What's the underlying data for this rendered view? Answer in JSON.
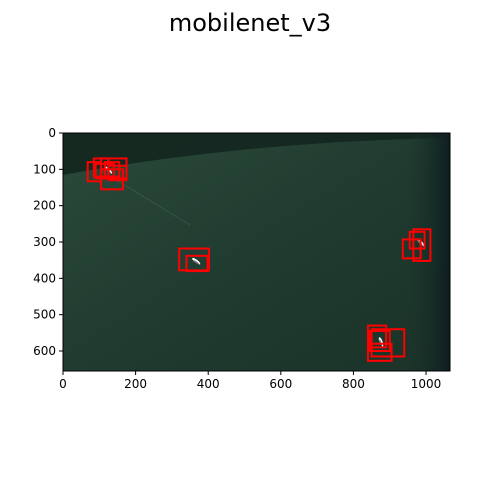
{
  "figure": {
    "title": "mobilenet_v3"
  },
  "chart_data": {
    "type": "image",
    "title": "mobilenet_v3",
    "xlabel": "",
    "ylabel": "",
    "xlim": [
      0,
      1066
    ],
    "ylim": [
      655,
      0
    ],
    "x_ticks": [
      0,
      200,
      400,
      600,
      800,
      1000
    ],
    "y_ticks": [
      0,
      100,
      200,
      300,
      400,
      500,
      600
    ],
    "grid": false,
    "box_color": "#ff0000",
    "image_description_colors": {
      "sea": "#1f3a2f",
      "dark_sea": "#0f1f1e",
      "ship": "#ffffff"
    },
    "detections": [
      {
        "x0": 68,
        "y0": 80,
        "x1": 105,
        "y1": 133
      },
      {
        "x0": 85,
        "y0": 70,
        "x1": 125,
        "y1": 120
      },
      {
        "x0": 90,
        "y0": 85,
        "x1": 140,
        "y1": 125
      },
      {
        "x0": 105,
        "y0": 70,
        "x1": 175,
        "y1": 125
      },
      {
        "x0": 115,
        "y0": 80,
        "x1": 155,
        "y1": 120
      },
      {
        "x0": 105,
        "y0": 100,
        "x1": 165,
        "y1": 155
      },
      {
        "x0": 125,
        "y0": 90,
        "x1": 175,
        "y1": 130
      },
      {
        "x0": 320,
        "y0": 318,
        "x1": 402,
        "y1": 378
      },
      {
        "x0": 340,
        "y0": 338,
        "x1": 398,
        "y1": 380
      },
      {
        "x0": 936,
        "y0": 293,
        "x1": 985,
        "y1": 345
      },
      {
        "x0": 955,
        "y0": 272,
        "x1": 996,
        "y1": 318
      },
      {
        "x0": 965,
        "y0": 265,
        "x1": 1012,
        "y1": 352
      },
      {
        "x0": 840,
        "y0": 530,
        "x1": 890,
        "y1": 590
      },
      {
        "x0": 845,
        "y0": 545,
        "x1": 900,
        "y1": 600
      },
      {
        "x0": 850,
        "y0": 540,
        "x1": 940,
        "y1": 615
      },
      {
        "x0": 840,
        "y0": 580,
        "x1": 905,
        "y1": 627
      }
    ],
    "ships": [
      {
        "x": 125,
        "y": 102,
        "angle": 45
      },
      {
        "x": 367,
        "y": 353,
        "angle": 38
      },
      {
        "x": 985,
        "y": 301,
        "angle": 50
      },
      {
        "x": 876,
        "y": 575,
        "angle": 70
      }
    ]
  }
}
